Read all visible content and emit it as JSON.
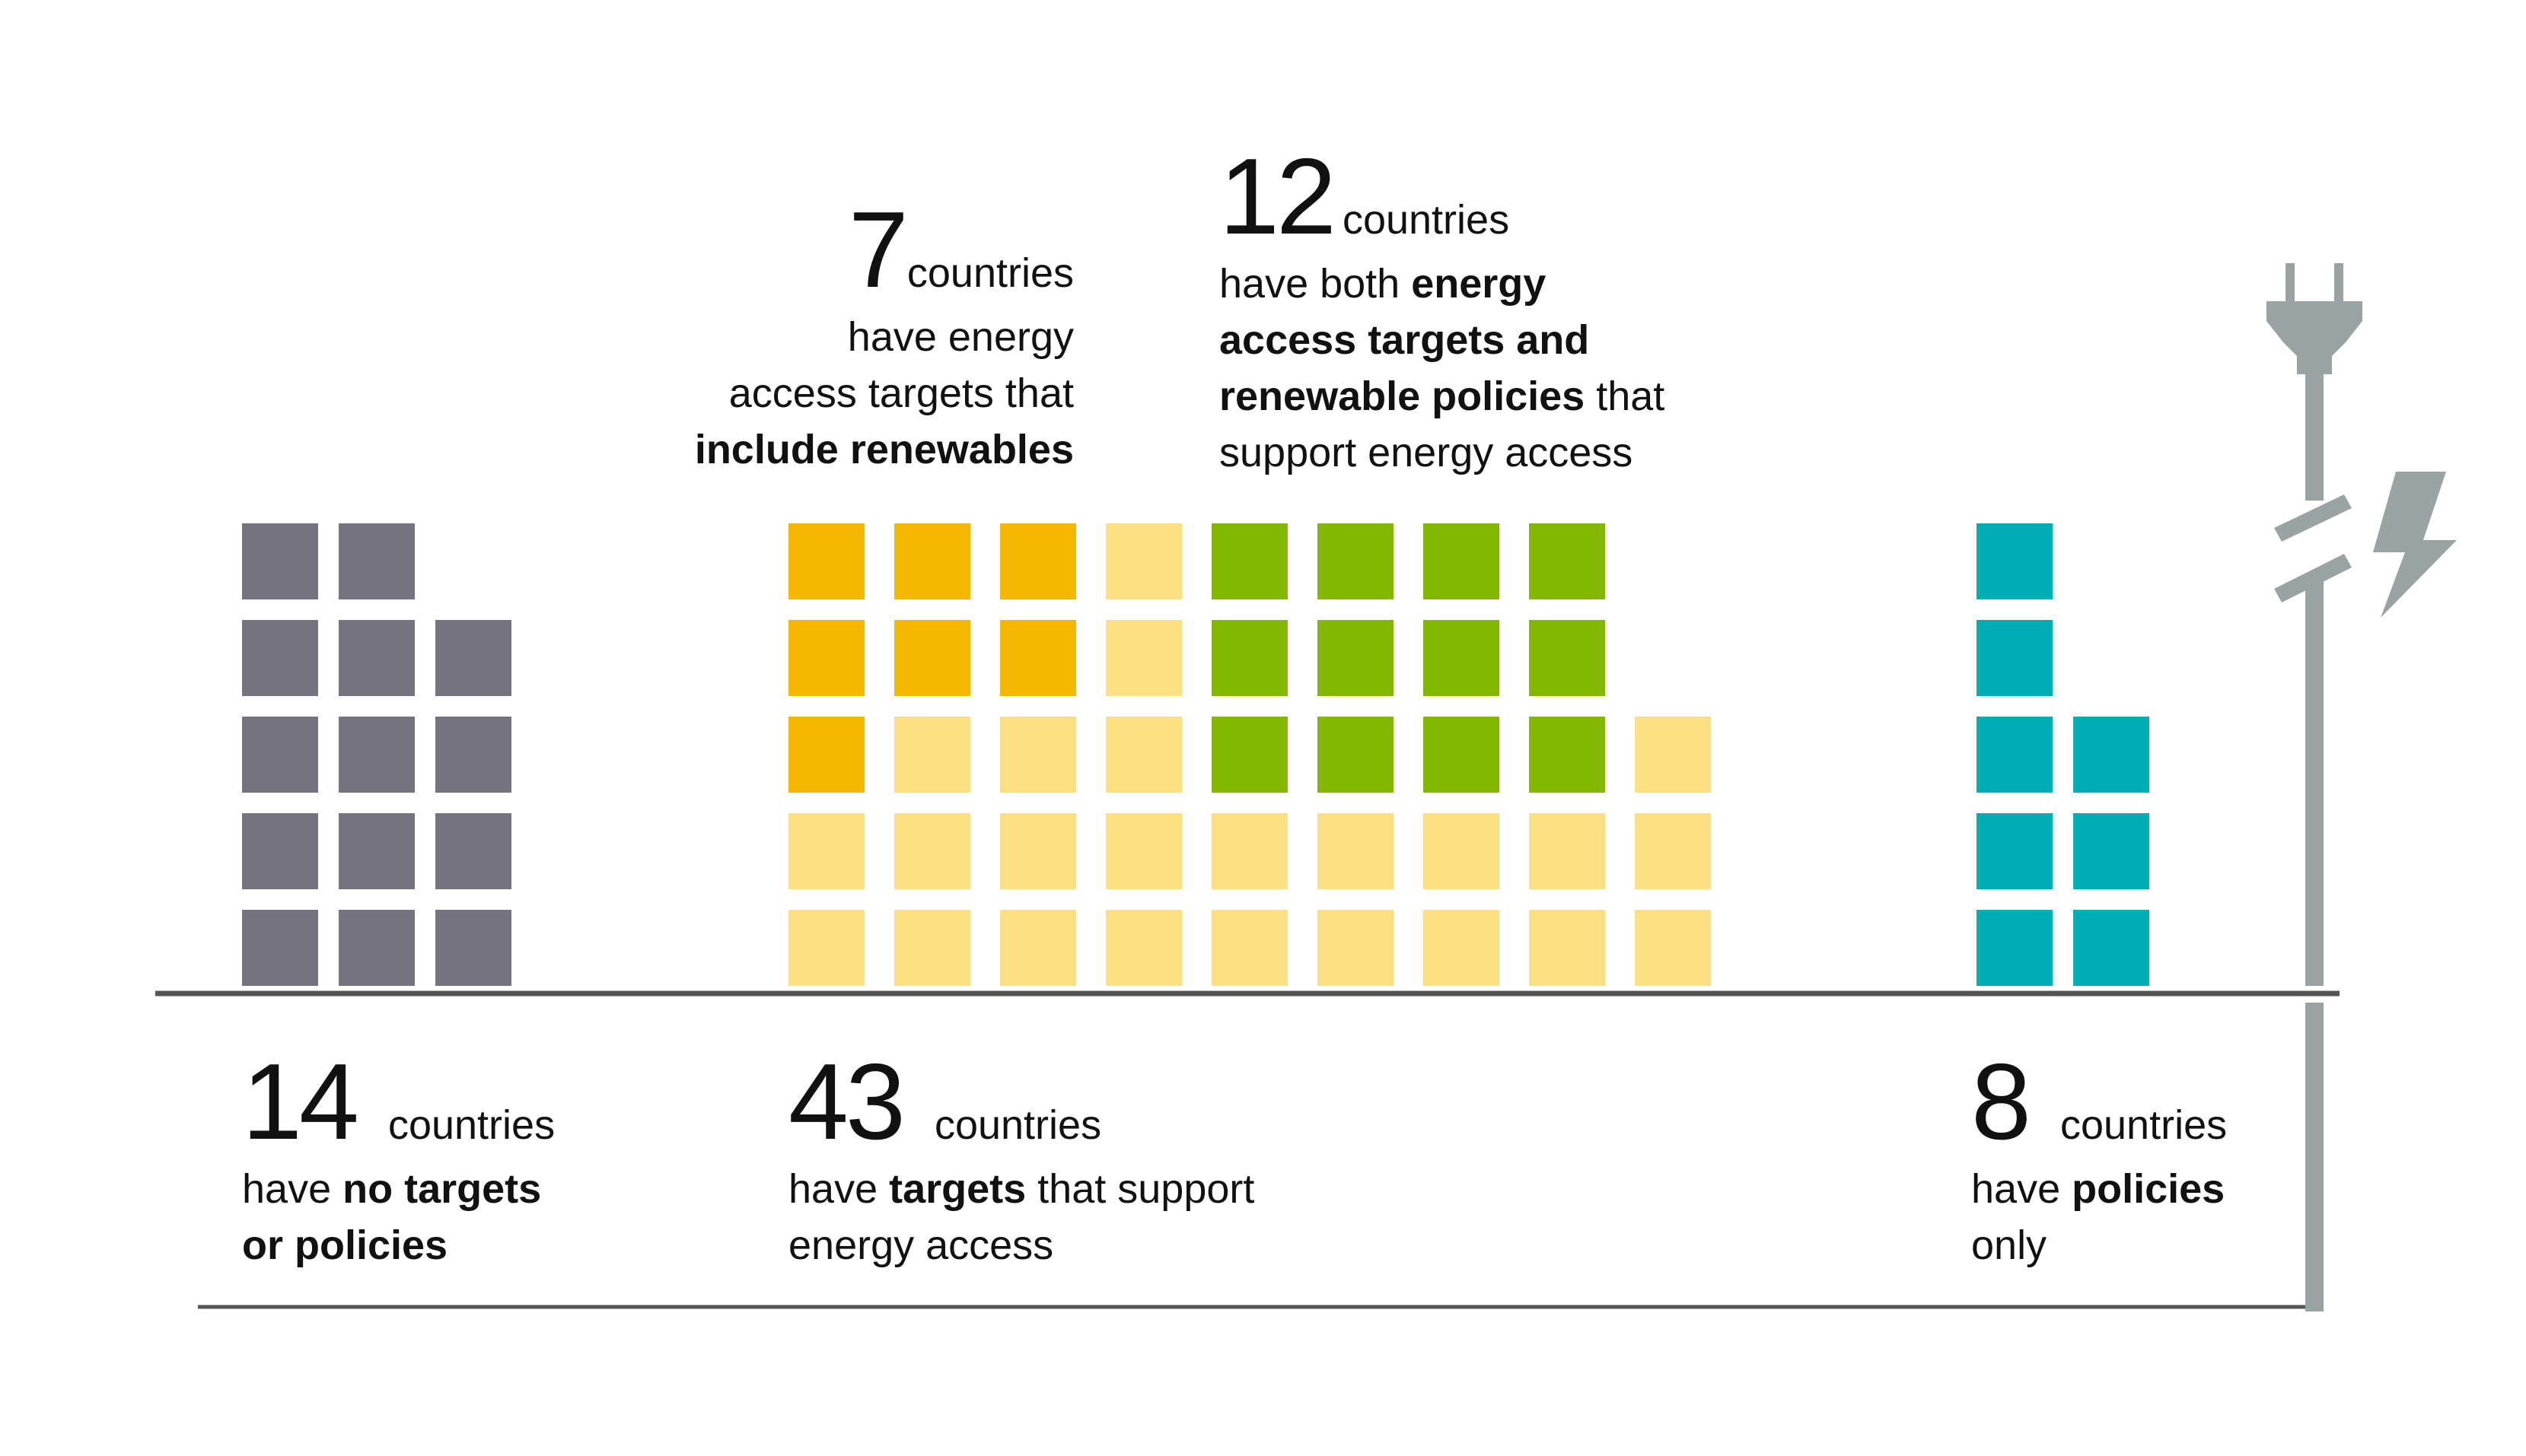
{
  "colors": {
    "no_targets_or_policies": "#757380",
    "targets_include_renewables": "#f5b800",
    "targets_only": "#fbdf82",
    "targets_and_policies": "#84b800",
    "policies_only": "#00aeb5",
    "baseline": "#555555",
    "plug": "#9aa3a3"
  },
  "icons": [
    "plug-icon",
    "lightning-bolt-icon"
  ],
  "chart_data": {
    "type": "waffle",
    "title": "",
    "groups": [
      {
        "name": "no-targets",
        "count": "14",
        "unit": "countries",
        "description": [
          "have ",
          "no targets",
          "",
          "or policies"
        ],
        "columns": [
          [
            "no_targets_or_policies",
            "no_targets_or_policies",
            "no_targets_or_policies",
            "no_targets_or_policies",
            "no_targets_or_policies"
          ],
          [
            "no_targets_or_policies",
            "no_targets_or_policies",
            "no_targets_or_policies",
            "no_targets_or_policies",
            "no_targets_or_policies"
          ],
          [
            "no_targets_or_policies",
            "no_targets_or_policies",
            "no_targets_or_policies",
            "no_targets_or_policies"
          ]
        ]
      },
      {
        "name": "targets",
        "count": "43",
        "unit": "countries",
        "description": [
          "have ",
          "targets",
          " that support",
          "energy access"
        ],
        "columns": [
          [
            "targets_only",
            "targets_only",
            "targets_include_renewables",
            "targets_include_renewables",
            "targets_include_renewables"
          ],
          [
            "targets_only",
            "targets_only",
            "targets_only",
            "targets_include_renewables",
            "targets_include_renewables"
          ],
          [
            "targets_only",
            "targets_only",
            "targets_only",
            "targets_include_renewables",
            "targets_include_renewables"
          ],
          [
            "targets_only",
            "targets_only",
            "targets_only",
            "targets_only",
            "targets_only"
          ],
          [
            "targets_only",
            "targets_only",
            "targets_and_policies",
            "targets_and_policies",
            "targets_and_policies"
          ],
          [
            "targets_only",
            "targets_only",
            "targets_and_policies",
            "targets_and_policies",
            "targets_and_policies"
          ],
          [
            "targets_only",
            "targets_only",
            "targets_and_policies",
            "targets_and_policies",
            "targets_and_policies"
          ],
          [
            "targets_only",
            "targets_only",
            "targets_and_policies",
            "targets_and_policies",
            "targets_and_policies"
          ],
          [
            "targets_only",
            "targets_only",
            "targets_only"
          ]
        ]
      },
      {
        "name": "policies-only",
        "count": "8",
        "unit": "countries",
        "description": [
          "have ",
          "policies",
          "",
          "only"
        ],
        "columns": [
          [
            "policies_only",
            "policies_only",
            "policies_only",
            "policies_only",
            "policies_only"
          ],
          [
            "policies_only",
            "policies_only",
            "policies_only"
          ]
        ]
      }
    ],
    "callouts": [
      {
        "name": "include-renewables",
        "count": "7",
        "unit": "countries",
        "lines": [
          [
            {
              "t": "have energy",
              "b": false
            }
          ],
          [
            {
              "t": "access targets that",
              "b": false
            }
          ],
          [
            {
              "t": "include renewables",
              "b": true
            }
          ]
        ]
      },
      {
        "name": "targets-and-policies",
        "count": "12",
        "unit": "countries",
        "lines": [
          [
            {
              "t": "have both ",
              "b": false
            },
            {
              "t": "energy",
              "b": true
            }
          ],
          [
            {
              "t": "access targets and",
              "b": true
            }
          ],
          [
            {
              "t": "renewable policies",
              "b": true
            },
            {
              "t": " that",
              "b": false
            }
          ],
          [
            {
              "t": "support energy access",
              "b": false
            }
          ]
        ]
      }
    ]
  }
}
